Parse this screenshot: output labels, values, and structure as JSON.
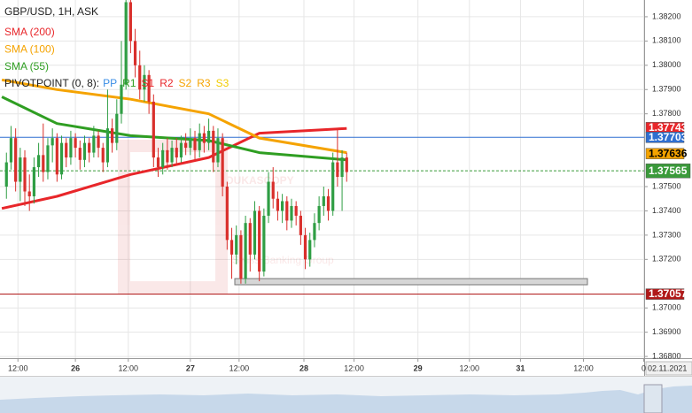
{
  "chart_data": {
    "type": "candlestick",
    "title": "GBP/USD, 1H, ASK",
    "x": [
      -15,
      -14,
      -13,
      -12,
      -11,
      -10,
      -9,
      -8,
      -7,
      -6,
      -5,
      -4,
      -3,
      -2,
      -1,
      0,
      1,
      2,
      3,
      4,
      5,
      6,
      7,
      8,
      9,
      10,
      11,
      12,
      13,
      14,
      15,
      16,
      17,
      18,
      19,
      20,
      21,
      22,
      23,
      24,
      25,
      26,
      27,
      28,
      29,
      30,
      31,
      32,
      33,
      34,
      35,
      36,
      37,
      38,
      39,
      40,
      41,
      42,
      43,
      44,
      45,
      46,
      47,
      48,
      49,
      50,
      51,
      52,
      53,
      54,
      55,
      56,
      57,
      58,
      59
    ],
    "candles": [
      [
        1.375,
        1.3764,
        1.3745,
        1.376
      ],
      [
        1.376,
        1.3775,
        1.3757,
        1.377
      ],
      [
        1.377,
        1.3774,
        1.3748,
        1.3752
      ],
      [
        1.3752,
        1.3766,
        1.3744,
        1.3762
      ],
      [
        1.3762,
        1.3765,
        1.3742,
        1.3748
      ],
      [
        1.3748,
        1.3755,
        1.374,
        1.3746
      ],
      [
        1.3746,
        1.3762,
        1.3743,
        1.3758
      ],
      [
        1.3758,
        1.3768,
        1.3754,
        1.3763
      ],
      [
        1.3763,
        1.3776,
        1.3752,
        1.3756
      ],
      [
        1.3756,
        1.377,
        1.3753,
        1.3767
      ],
      [
        1.3767,
        1.3774,
        1.376,
        1.377
      ],
      [
        1.377,
        1.3772,
        1.3752,
        1.3755
      ],
      [
        1.3755,
        1.3771,
        1.3753,
        1.3768
      ],
      [
        1.3768,
        1.377,
        1.3758,
        1.3762
      ],
      [
        1.3762,
        1.3773,
        1.3759,
        1.377
      ],
      [
        1.377,
        1.3772,
        1.3762,
        1.3766
      ],
      [
        1.3766,
        1.3769,
        1.3757,
        1.3761
      ],
      [
        1.3761,
        1.3771,
        1.3758,
        1.3768
      ],
      [
        1.3768,
        1.377,
        1.376,
        1.3764
      ],
      [
        1.3764,
        1.3775,
        1.3762,
        1.3771
      ],
      [
        1.3771,
        1.3773,
        1.3762,
        1.3766
      ],
      [
        1.3766,
        1.3768,
        1.3756,
        1.376
      ],
      [
        1.376,
        1.379,
        1.3758,
        1.3774
      ],
      [
        1.3774,
        1.3778,
        1.3764,
        1.3768
      ],
      [
        1.3768,
        1.3786,
        1.3765,
        1.378
      ],
      [
        1.378,
        1.381,
        1.3776,
        1.3792
      ],
      [
        1.3792,
        1.3828,
        1.379,
        1.3826
      ],
      [
        1.3826,
        1.3828,
        1.3805,
        1.381
      ],
      [
        1.381,
        1.3815,
        1.3795,
        1.38
      ],
      [
        1.38,
        1.3806,
        1.3786,
        1.379
      ],
      [
        1.379,
        1.38,
        1.3785,
        1.3796
      ],
      [
        1.3796,
        1.3798,
        1.378,
        1.3785
      ],
      [
        1.3785,
        1.3788,
        1.3758,
        1.3762
      ],
      [
        1.3762,
        1.3766,
        1.3754,
        1.3758
      ],
      [
        1.3758,
        1.3768,
        1.3755,
        1.3765
      ],
      [
        1.3765,
        1.377,
        1.3757,
        1.376
      ],
      [
        1.376,
        1.3769,
        1.3758,
        1.3766
      ],
      [
        1.3766,
        1.377,
        1.3759,
        1.3762
      ],
      [
        1.3762,
        1.3771,
        1.376,
        1.3768
      ],
      [
        1.3768,
        1.3772,
        1.3763,
        1.3766
      ],
      [
        1.3766,
        1.3774,
        1.3763,
        1.377
      ],
      [
        1.377,
        1.3773,
        1.3761,
        1.3765
      ],
      [
        1.3765,
        1.3776,
        1.3762,
        1.3772
      ],
      [
        1.3772,
        1.3775,
        1.3764,
        1.3768
      ],
      [
        1.3768,
        1.3778,
        1.3765,
        1.3773
      ],
      [
        1.3773,
        1.3775,
        1.3756,
        1.376
      ],
      [
        1.376,
        1.3774,
        1.3758,
        1.377
      ],
      [
        1.377,
        1.3772,
        1.3746,
        1.375
      ],
      [
        1.375,
        1.3752,
        1.3724,
        1.3728
      ],
      [
        1.3728,
        1.3733,
        1.3712,
        1.3722
      ],
      [
        1.3722,
        1.3734,
        1.3718,
        1.373
      ],
      [
        1.373,
        1.3732,
        1.371,
        1.3712
      ],
      [
        1.3712,
        1.3738,
        1.371,
        1.3735
      ],
      [
        1.3735,
        1.3737,
        1.3715,
        1.3722
      ],
      [
        1.3722,
        1.3744,
        1.372,
        1.374
      ],
      [
        1.374,
        1.3742,
        1.3711,
        1.3715
      ],
      [
        1.3715,
        1.3741,
        1.3713,
        1.3738
      ],
      [
        1.3738,
        1.3756,
        1.3735,
        1.3752
      ],
      [
        1.3752,
        1.3758,
        1.3741,
        1.3745
      ],
      [
        1.3745,
        1.3748,
        1.3736,
        1.374
      ],
      [
        1.374,
        1.3747,
        1.3735,
        1.3744
      ],
      [
        1.3744,
        1.3746,
        1.3732,
        1.3736
      ],
      [
        1.3736,
        1.3745,
        1.3733,
        1.3742
      ],
      [
        1.3742,
        1.3744,
        1.3734,
        1.3738
      ],
      [
        1.3738,
        1.374,
        1.3726,
        1.373
      ],
      [
        1.373,
        1.3733,
        1.3716,
        1.372
      ],
      [
        1.372,
        1.3731,
        1.3717,
        1.3728
      ],
      [
        1.3728,
        1.3739,
        1.3725,
        1.3735
      ],
      [
        1.3735,
        1.3746,
        1.3732,
        1.3742
      ],
      [
        1.3742,
        1.375,
        1.3738,
        1.3746
      ],
      [
        1.3746,
        1.3749,
        1.3736,
        1.374
      ],
      [
        1.374,
        1.3764,
        1.3738,
        1.376
      ],
      [
        1.376,
        1.3774,
        1.375,
        1.3754
      ],
      [
        1.3754,
        1.3765,
        1.374,
        1.3762
      ],
      [
        1.3762,
        1.3764,
        1.3752,
        1.3756
      ]
    ],
    "up_color": "#2f9e44",
    "down_color": "#d9302c",
    "overlays": [
      {
        "name": "SMA (200)",
        "color": "#e8262a",
        "x": [
          -16,
          -4,
          12,
          29,
          40,
          59
        ],
        "values": [
          1.3741,
          1.3746,
          1.3755,
          1.3762,
          1.3772,
          1.3774
        ]
      },
      {
        "name": "SMA (100)",
        "color": "#f5a300",
        "x": [
          -16,
          -4,
          12,
          29,
          40,
          59
        ],
        "values": [
          1.3794,
          1.379,
          1.3786,
          1.378,
          1.377,
          1.3764
        ]
      },
      {
        "name": "SMA (55)",
        "color": "#2f9e22",
        "x": [
          -16,
          -4,
          12,
          29,
          40,
          59
        ],
        "values": [
          1.3787,
          1.3776,
          1.3771,
          1.3769,
          1.3764,
          1.3761
        ]
      }
    ],
    "pivot_legend": {
      "label": "PIVOTPOINT (0, 8):",
      "items": [
        {
          "name": "PP",
          "color": "#3a8ee6"
        },
        {
          "name": "R1",
          "color": "#2f9e22"
        },
        {
          "name": "S1",
          "color": "#e8262a"
        },
        {
          "name": "R2",
          "color": "#e8262a"
        },
        {
          "name": "S2",
          "color": "#f5a300"
        },
        {
          "name": "R3",
          "color": "#f5a300"
        },
        {
          "name": "S3",
          "color": "#f2cc00"
        }
      ]
    },
    "levels": [
      {
        "value": 1.37743,
        "color": "#e8262a"
      },
      {
        "value": 1.37703,
        "color": "#2f6fd0",
        "line": "solid"
      },
      {
        "value": 1.37636,
        "color": "#f5a300"
      },
      {
        "value": 1.37565,
        "color": "#3a9a3a",
        "line": "dashed"
      },
      {
        "value": 1.37057,
        "color": "#b01818",
        "line": "solid"
      }
    ],
    "ylim": [
      1.36793,
      1.38269
    ],
    "yticks": [
      {
        "value": 1.382,
        "label": "1.38200"
      },
      {
        "value": 1.381,
        "label": "1.38100"
      },
      {
        "value": 1.38,
        "label": "1.38000"
      },
      {
        "value": 1.379,
        "label": "1.37900"
      },
      {
        "value": 1.378,
        "label": "1.37800"
      },
      {
        "value": 1.375,
        "label": "1.37500"
      },
      {
        "value": 1.374,
        "label": "1.37400"
      },
      {
        "value": 1.373,
        "label": "1.37300"
      },
      {
        "value": 1.372,
        "label": "1.37200"
      },
      {
        "value": 1.37,
        "label": "1.37000"
      },
      {
        "value": 1.369,
        "label": "1.36900"
      },
      {
        "value": 1.368,
        "label": "1.36800"
      }
    ],
    "xlim": [
      -16.4,
      123.7
    ],
    "xticks": [
      {
        "value": -12.5,
        "label": "12:00"
      },
      {
        "value": 0,
        "label": "26"
      },
      {
        "value": 11.5,
        "label": "12:00"
      },
      {
        "value": 25,
        "label": "27"
      },
      {
        "value": 35.6,
        "label": "12:00"
      },
      {
        "value": 49.7,
        "label": "28"
      },
      {
        "value": 60.6,
        "label": "12:00"
      },
      {
        "value": 74.5,
        "label": "29"
      },
      {
        "value": 85.7,
        "label": "12:00"
      },
      {
        "value": 96.8,
        "label": "31"
      },
      {
        "value": 110.5,
        "label": "12:00"
      },
      {
        "value": 123.6,
        "label": "0"
      }
    ],
    "date_label": "02.11.2021",
    "watermark": {
      "brand": "DUKASCOPY",
      "tagline": "Swiss Banking Group"
    },
    "grid": true
  }
}
